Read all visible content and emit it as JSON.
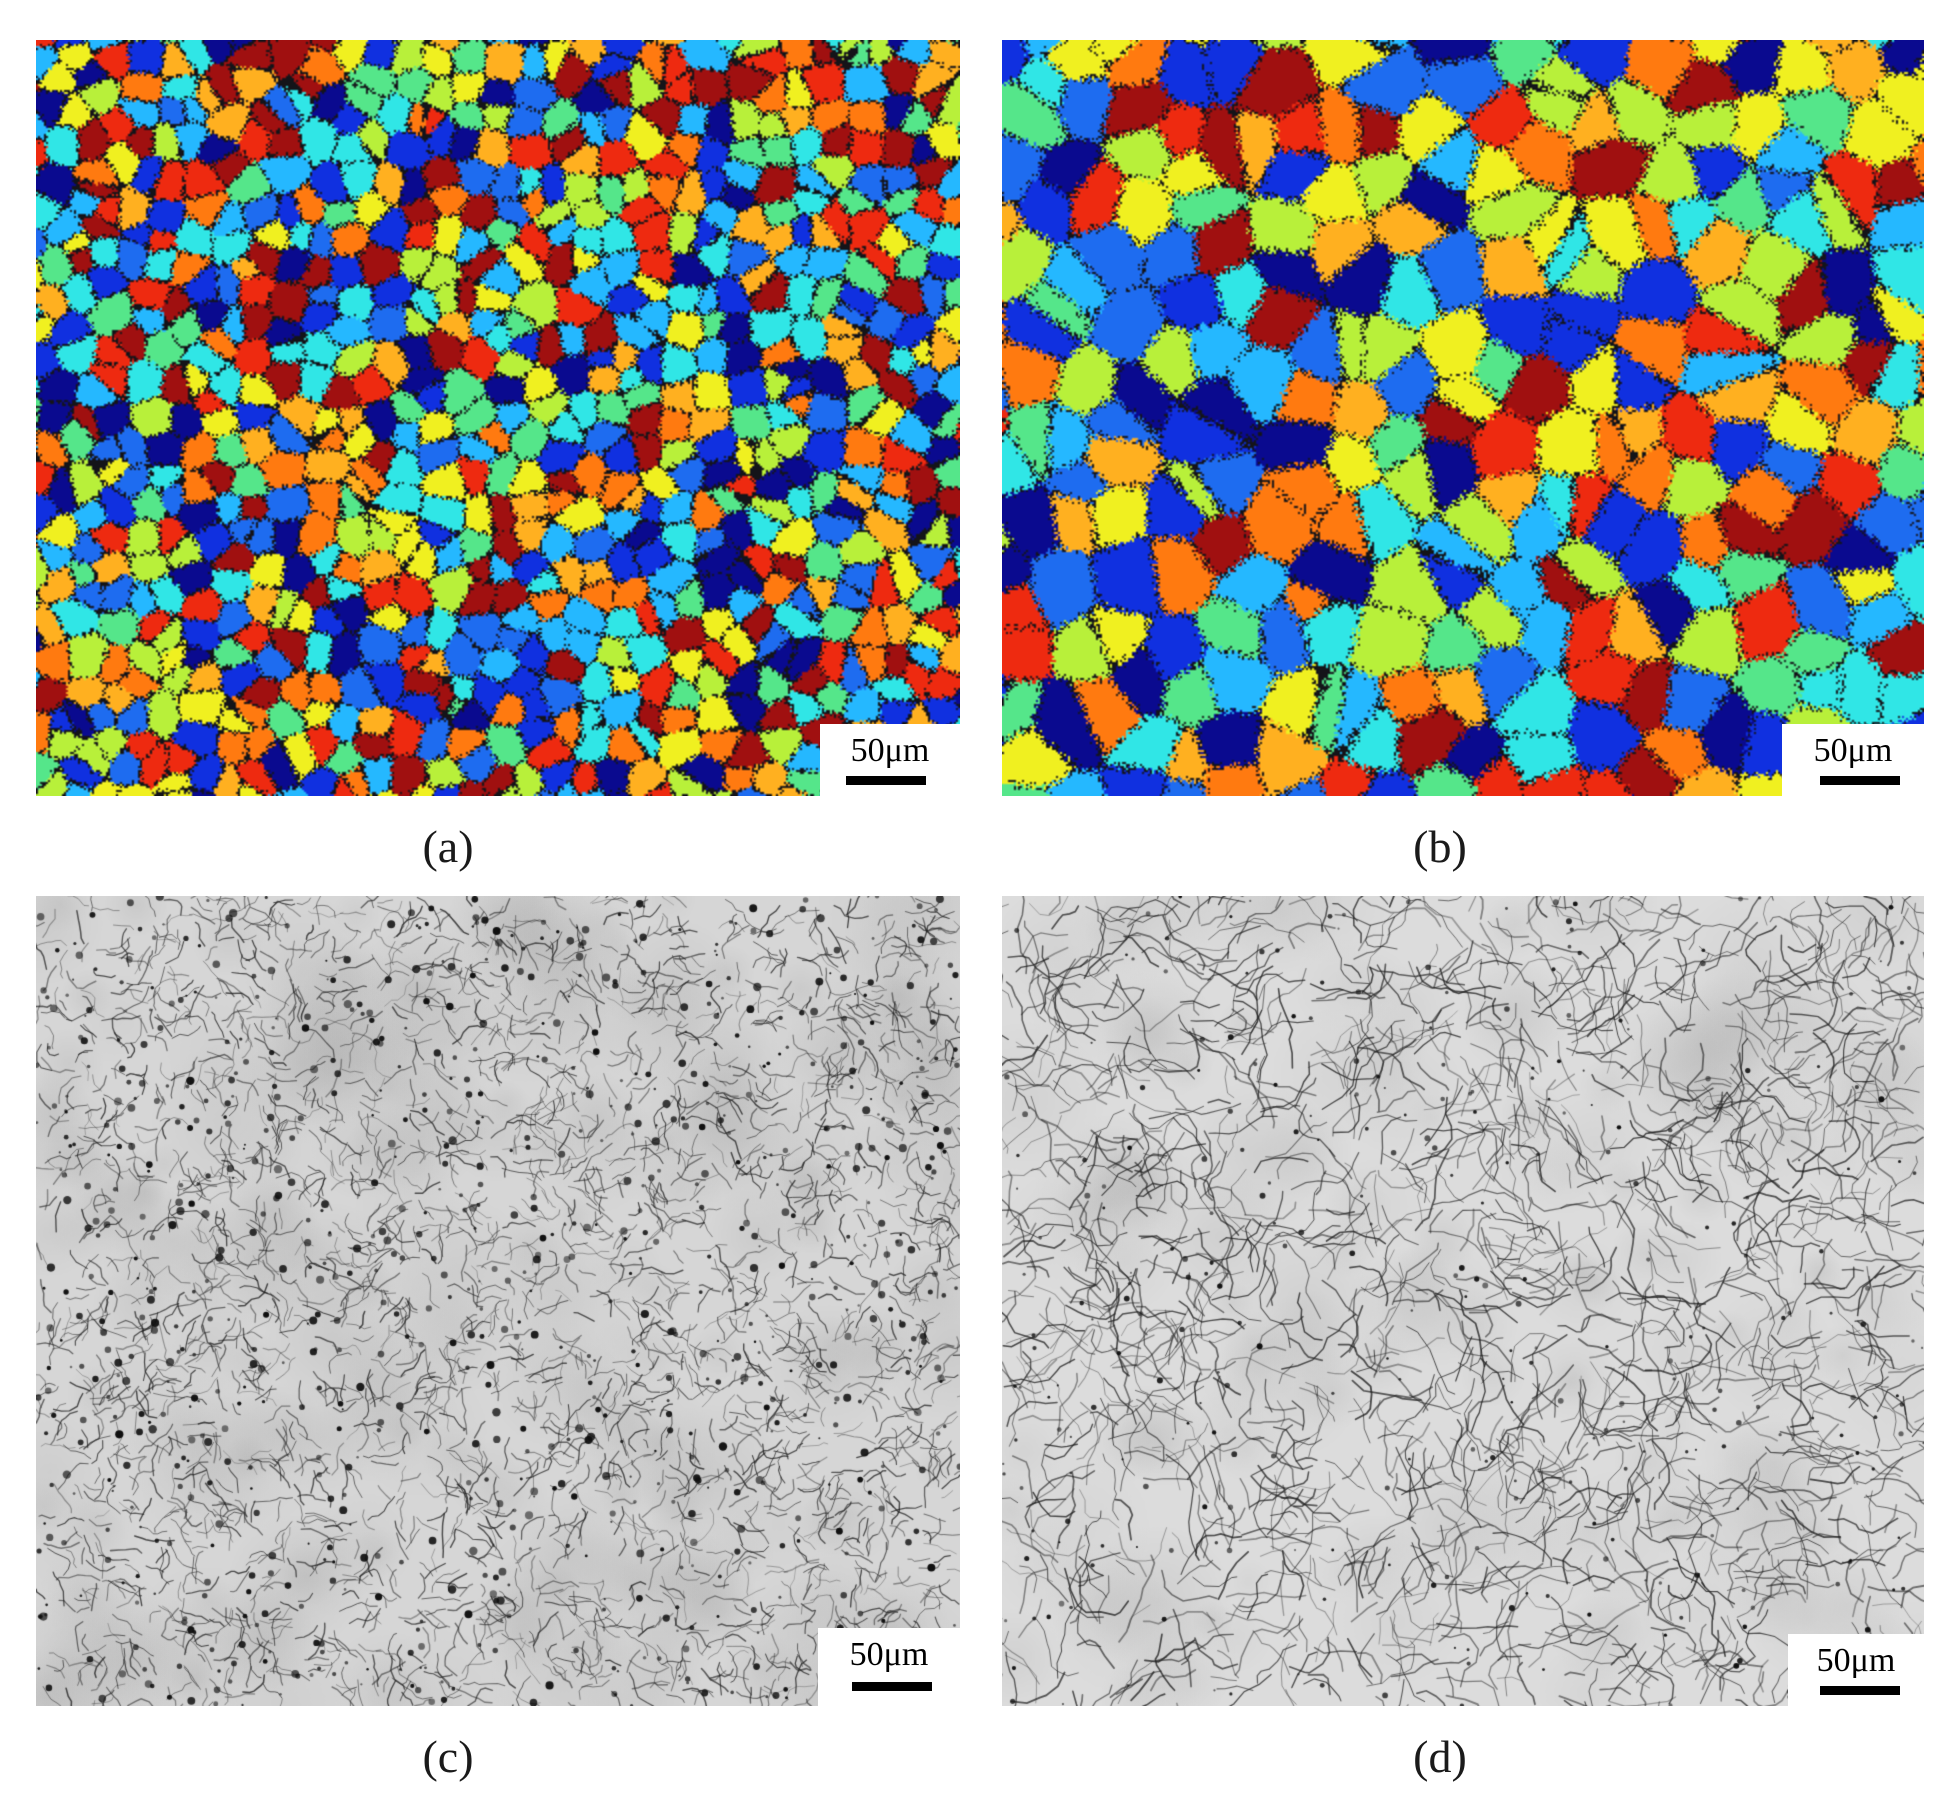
{
  "panels": [
    {
      "id": "a",
      "type": "ebsd-grain-map",
      "caption": "(a)",
      "scale_label": "50μm",
      "grain_size": "fine"
    },
    {
      "id": "b",
      "type": "ebsd-grain-map",
      "caption": "(b)",
      "scale_label": "50μm",
      "grain_size": "coarse"
    },
    {
      "id": "c",
      "type": "optical-micrograph",
      "caption": "(c)",
      "scale_label": "50μm",
      "tone": "light-gray, fine dark clusters"
    },
    {
      "id": "d",
      "type": "optical-micrograph",
      "caption": "(d)",
      "scale_label": "50μm",
      "tone": "light-gray, coarse boundary network"
    }
  ],
  "palette": [
    "#0a0a8f",
    "#1030e0",
    "#1e6cf0",
    "#25b8ff",
    "#30e6e6",
    "#55e68a",
    "#b8f03a",
    "#f0f020",
    "#ffb020",
    "#ff7a10",
    "#ee2a10",
    "#a01010"
  ]
}
